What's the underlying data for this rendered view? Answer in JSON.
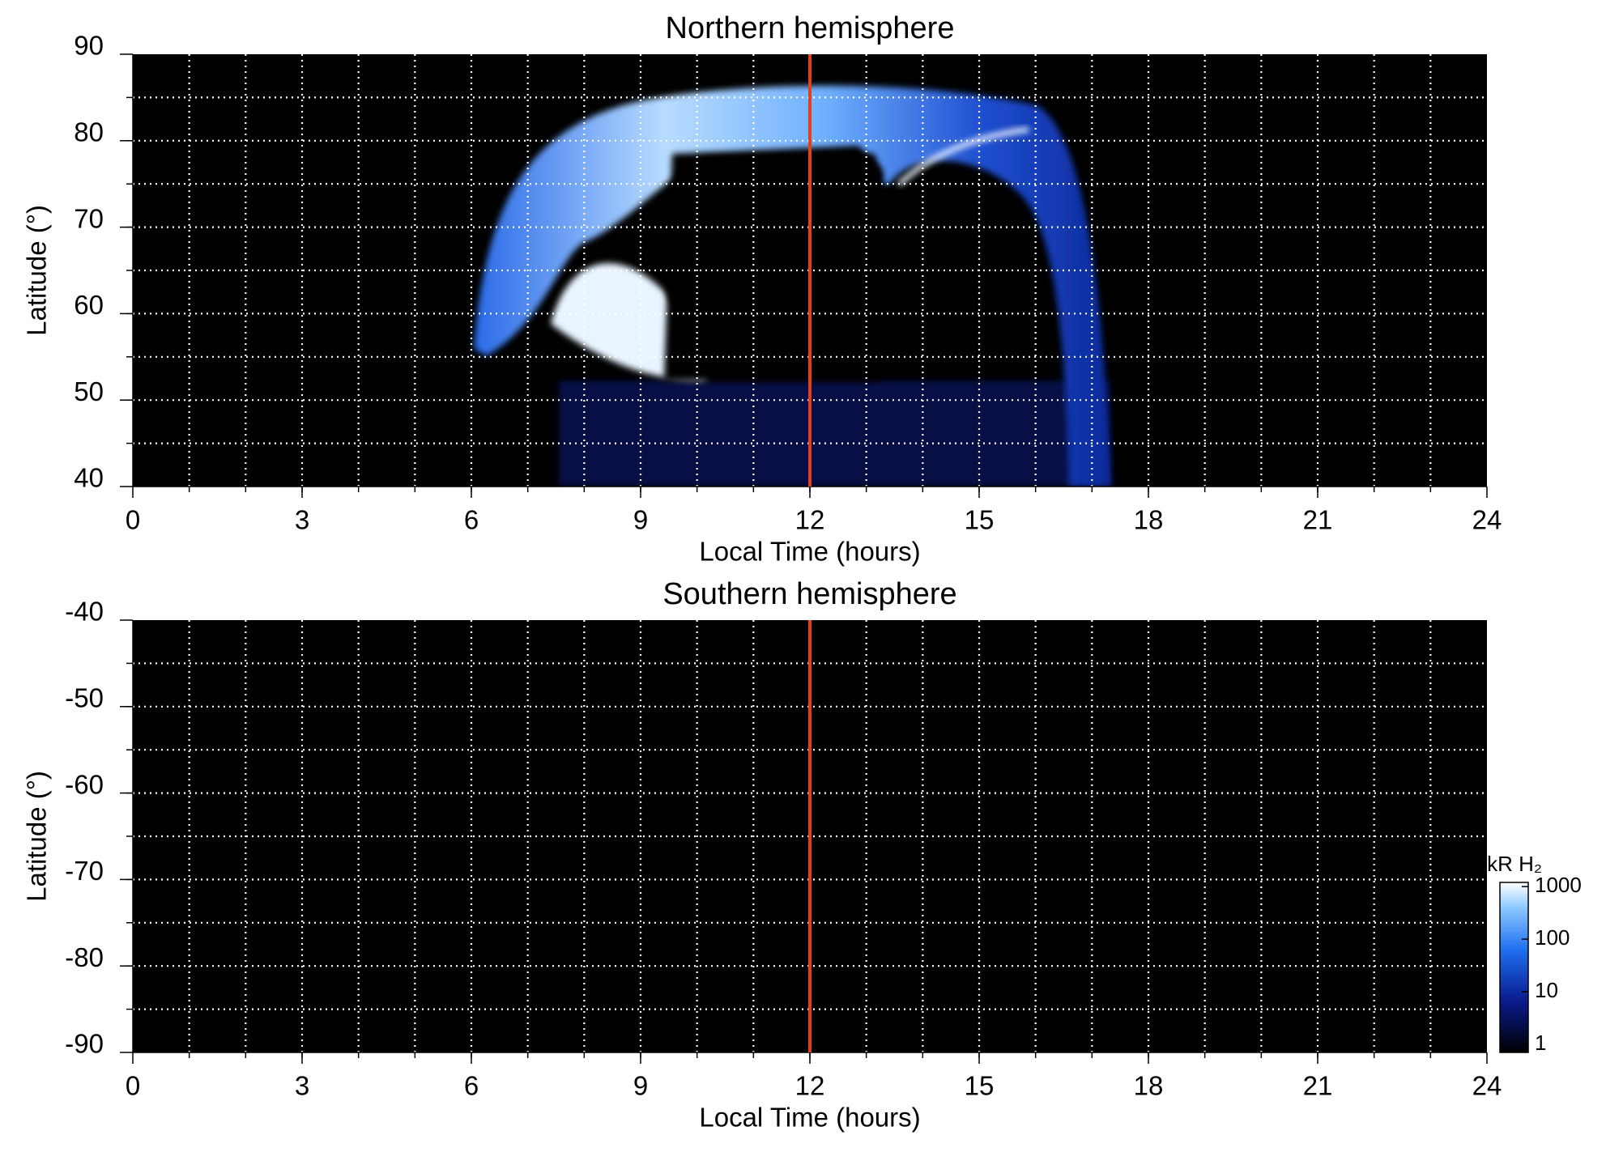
{
  "chart_data": [
    {
      "type": "heatmap",
      "title": "Northern hemisphere",
      "xlabel": "Local Time (hours)",
      "ylabel": "Latitude (°)",
      "xlim": [
        0,
        24
      ],
      "xticks": [
        0,
        3,
        6,
        9,
        12,
        15,
        18,
        21,
        24
      ],
      "ylim": [
        40,
        90
      ],
      "yticks": [
        40,
        50,
        60,
        70,
        80,
        90
      ],
      "xgrid": [
        1,
        2,
        3,
        4,
        5,
        6,
        7,
        8,
        9,
        10,
        11,
        12,
        13,
        14,
        15,
        16,
        17,
        18,
        19,
        20,
        21,
        22,
        23
      ],
      "ygrid": [
        45,
        50,
        55,
        60,
        65,
        70,
        75,
        80,
        85
      ],
      "vline": {
        "x": 12,
        "color": "#e0401c"
      }
    },
    {
      "type": "heatmap",
      "title": "Southern hemisphere",
      "xlabel": "Local Time (hours)",
      "ylabel": "Latitude (°)",
      "xlim": [
        0,
        24
      ],
      "xticks": [
        0,
        3,
        6,
        9,
        12,
        15,
        18,
        21,
        24
      ],
      "ylim": [
        -90,
        -40
      ],
      "yticks": [
        -90,
        -80,
        -70,
        -60,
        -50,
        -40
      ],
      "xgrid": [
        1,
        2,
        3,
        4,
        5,
        6,
        7,
        8,
        9,
        10,
        11,
        12,
        13,
        14,
        15,
        16,
        17,
        18,
        19,
        20,
        21,
        22,
        23
      ],
      "ygrid": [
        -85,
        -80,
        -75,
        -70,
        -65,
        -60,
        -55,
        -50,
        -45
      ],
      "vline": {
        "x": 12,
        "color": "#e0401c"
      },
      "colorbar": {
        "label": "kR H₂",
        "log": true,
        "lim": [
          0.7,
          1200
        ],
        "ticks": [
          1,
          10,
          100,
          1000
        ]
      }
    }
  ]
}
